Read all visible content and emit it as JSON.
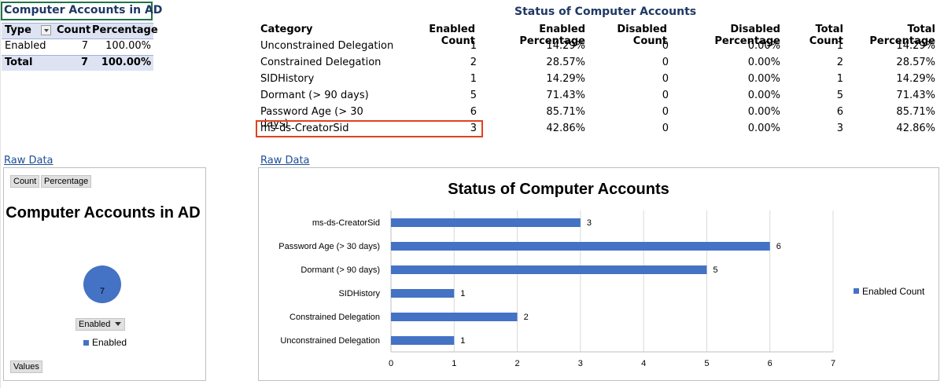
{
  "pivot": {
    "title": "Computer Accounts in AD",
    "headers": [
      "Type",
      "Count",
      "Percentage"
    ],
    "row": {
      "type": "Enabled",
      "count": "7",
      "percentage": "100.00%"
    },
    "total": {
      "label": "Total",
      "count": "7",
      "percentage": "100.00%"
    }
  },
  "status_table": {
    "title": "Status of Computer Accounts",
    "headers": [
      "Category",
      "Enabled Count",
      "Enabled Percentage",
      "Disabled Count",
      "Disabled Percentage",
      "Total Count",
      "Total Percentage"
    ],
    "rows": [
      [
        "Unconstrained Delegation",
        "1",
        "14.29%",
        "0",
        "0.00%",
        "1",
        "14.29%"
      ],
      [
        "Constrained Delegation",
        "2",
        "28.57%",
        "0",
        "0.00%",
        "2",
        "28.57%"
      ],
      [
        "SIDHistory",
        "1",
        "14.29%",
        "0",
        "0.00%",
        "1",
        "14.29%"
      ],
      [
        "Dormant (> 90 days)",
        "5",
        "71.43%",
        "0",
        "0.00%",
        "5",
        "71.43%"
      ],
      [
        "Password Age (> 30 days)",
        "6",
        "85.71%",
        "0",
        "0.00%",
        "6",
        "85.71%"
      ],
      [
        "ms-ds-CreatorSid",
        "3",
        "42.86%",
        "0",
        "0.00%",
        "3",
        "42.86%"
      ]
    ]
  },
  "links": {
    "raw_data_left": "Raw Data",
    "raw_data_right": "Raw Data"
  },
  "pie_chart": {
    "field_buttons": [
      "Count",
      "Percentage"
    ],
    "title": "Computer Accounts in AD",
    "value_label": "7",
    "filter_label": "Enabled",
    "legend": "Enabled",
    "values_button": "Values",
    "color": "#4472c4"
  },
  "chart_data": [
    {
      "type": "pie",
      "title": "Computer Accounts in AD",
      "categories": [
        "Enabled"
      ],
      "values": [
        7
      ]
    },
    {
      "type": "bar",
      "orientation": "horizontal",
      "title": "Status of Computer Accounts",
      "categories": [
        "ms-ds-CreatorSid",
        "Password Age (> 30 days)",
        "Dormant (> 90 days)",
        "SIDHistory",
        "Constrained Delegation",
        "Unconstrained Delegation"
      ],
      "series": [
        {
          "name": "Enabled Count",
          "values": [
            3,
            6,
            5,
            1,
            2,
            1
          ]
        }
      ],
      "xlim": [
        0,
        7
      ],
      "xticks": [
        "0",
        "1",
        "2",
        "3",
        "4",
        "5",
        "6",
        "7"
      ],
      "grid": true,
      "legend": "right",
      "color": "#4472c4"
    }
  ]
}
